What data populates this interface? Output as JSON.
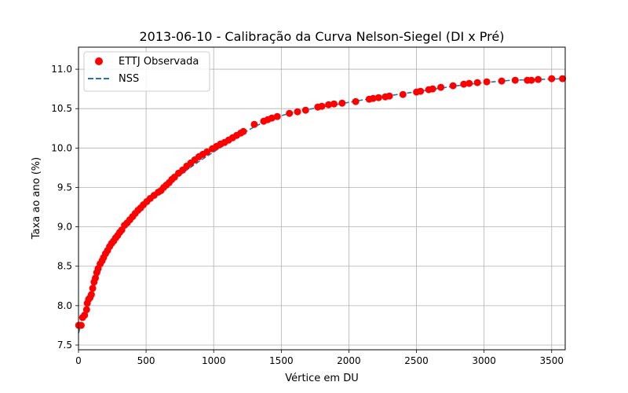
{
  "chart_data": {
    "type": "scatter",
    "title": "2013-06-10 - Calibração da Curva Nelson-Siegel (DI x Pré)",
    "xlabel": "Vértice em DU",
    "ylabel": "Taxa ao ano (%)",
    "xlim": [
      0,
      3600
    ],
    "ylim": [
      7.44,
      11.28
    ],
    "xticks": [
      0,
      500,
      1000,
      1500,
      2000,
      2500,
      3000,
      3500
    ],
    "yticks": [
      7.5,
      8.0,
      8.5,
      9.0,
      9.5,
      10.0,
      10.5,
      11.0
    ],
    "xtick_labels": [
      "0",
      "500",
      "1000",
      "1500",
      "2000",
      "2500",
      "3000",
      "3500"
    ],
    "ytick_labels": [
      "7.5",
      "8.0",
      "8.5",
      "9.0",
      "9.5",
      "10.0",
      "10.5",
      "11.0"
    ],
    "grid": true,
    "legend_position": "top-left",
    "series": [
      {
        "name": "ETTJ Observada",
        "kind": "scatter",
        "color": "#ff0000",
        "x": [
          1,
          20,
          30,
          45,
          60,
          65,
          75,
          85,
          95,
          105,
          115,
          125,
          135,
          145,
          160,
          175,
          185,
          200,
          215,
          230,
          245,
          260,
          275,
          290,
          305,
          320,
          340,
          360,
          380,
          400,
          420,
          440,
          460,
          480,
          505,
          530,
          560,
          590,
          610,
          630,
          650,
          670,
          690,
          710,
          740,
          770,
          800,
          830,
          860,
          890,
          920,
          950,
          990,
          1020,
          1050,
          1080,
          1110,
          1140,
          1170,
          1200,
          1220,
          1300,
          1370,
          1400,
          1430,
          1470,
          1560,
          1620,
          1680,
          1770,
          1800,
          1850,
          1890,
          1950,
          2050,
          2150,
          2180,
          2220,
          2270,
          2300,
          2400,
          2500,
          2530,
          2590,
          2620,
          2680,
          2770,
          2850,
          2890,
          2950,
          3020,
          3130,
          3230,
          3320,
          3350,
          3400,
          3500,
          3580
        ],
        "y": [
          7.75,
          7.75,
          7.85,
          7.88,
          7.95,
          8.03,
          8.08,
          8.1,
          8.14,
          8.22,
          8.3,
          8.35,
          8.42,
          8.47,
          8.53,
          8.57,
          8.61,
          8.66,
          8.7,
          8.75,
          8.79,
          8.82,
          8.86,
          8.89,
          8.93,
          8.96,
          9.02,
          9.05,
          9.09,
          9.13,
          9.17,
          9.21,
          9.24,
          9.28,
          9.32,
          9.36,
          9.4,
          9.44,
          9.46,
          9.5,
          9.53,
          9.56,
          9.6,
          9.63,
          9.68,
          9.72,
          9.77,
          9.81,
          9.85,
          9.89,
          9.92,
          9.95,
          9.99,
          10.02,
          10.05,
          10.07,
          10.1,
          10.13,
          10.16,
          10.19,
          10.21,
          10.3,
          10.34,
          10.36,
          10.38,
          10.4,
          10.44,
          10.46,
          10.48,
          10.52,
          10.53,
          10.55,
          10.56,
          10.57,
          10.59,
          10.62,
          10.63,
          10.64,
          10.65,
          10.66,
          10.68,
          10.71,
          10.72,
          10.74,
          10.75,
          10.77,
          10.79,
          10.81,
          10.82,
          10.83,
          10.84,
          10.85,
          10.86,
          10.86,
          10.86,
          10.87,
          10.88,
          10.88
        ]
      },
      {
        "name": "NSS",
        "kind": "line",
        "style": "dashed",
        "color": "#1f77b4",
        "x": [
          0,
          25,
          50,
          75,
          100,
          125,
          150,
          175,
          200,
          250,
          300,
          350,
          400,
          450,
          500,
          600,
          700,
          800,
          900,
          1000,
          1100,
          1200,
          1300,
          1400,
          1500,
          1600,
          1700,
          1800,
          1900,
          2000,
          2200,
          2400,
          2600,
          2800,
          3000,
          3200,
          3400,
          3600
        ],
        "y": [
          7.65,
          7.8,
          7.93,
          8.05,
          8.18,
          8.3,
          8.4,
          8.5,
          8.6,
          8.76,
          8.9,
          9.02,
          9.12,
          9.21,
          9.3,
          9.45,
          9.59,
          9.72,
          9.84,
          9.95,
          10.06,
          10.17,
          10.27,
          10.35,
          10.41,
          10.46,
          10.49,
          10.52,
          10.55,
          10.58,
          10.64,
          10.69,
          10.74,
          10.79,
          10.83,
          10.86,
          10.87,
          10.88
        ]
      }
    ]
  }
}
